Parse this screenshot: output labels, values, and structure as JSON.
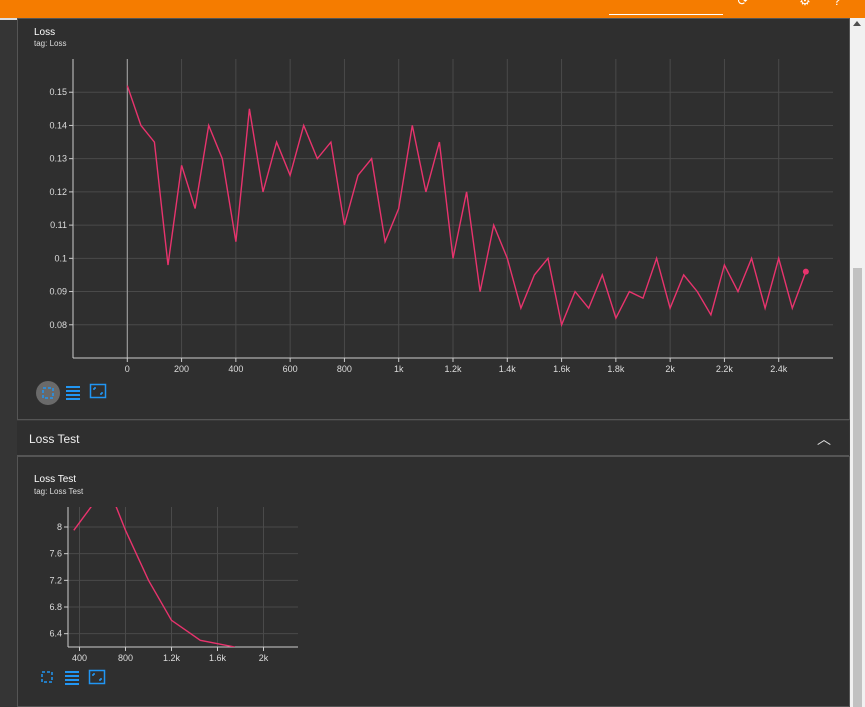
{
  "colors": {
    "accent": "#f57c00",
    "series": "#e8336d",
    "background": "#2f2f2f",
    "toolbar_icon": "#2196f3"
  },
  "loss_card": {
    "title": "Loss",
    "tag": "tag: Loss"
  },
  "loss_test_section": {
    "label": "Loss Test",
    "collapse_icon": "chevron-up-icon"
  },
  "loss_test_card": {
    "title": "Loss Test",
    "tag": "tag: Loss Test"
  },
  "chart_data": [
    {
      "type": "line",
      "title": "Loss",
      "xlim": [
        -200,
        2600
      ],
      "ylim": [
        0.07,
        0.16
      ],
      "x_ticks": [
        0,
        200,
        400,
        600,
        800,
        1000,
        1200,
        1400,
        1600,
        1800,
        2000,
        2200,
        2400
      ],
      "x_tick_labels": [
        "0",
        "200",
        "400",
        "600",
        "800",
        "1k",
        "1.2k",
        "1.4k",
        "1.6k",
        "1.8k",
        "2k",
        "2.2k",
        "2.4k"
      ],
      "y_ticks": [
        0.08,
        0.09,
        0.1,
        0.11,
        0.12,
        0.13,
        0.14,
        0.15
      ],
      "y_tick_labels": [
        "0.08",
        "0.09",
        "0.1",
        "0.11",
        "0.12",
        "0.13",
        "0.14",
        "0.15"
      ],
      "grid": true,
      "series": [
        {
          "color": "#e8336d",
          "x": [
            0,
            50,
            100,
            150,
            200,
            250,
            300,
            350,
            400,
            450,
            500,
            550,
            600,
            650,
            700,
            750,
            800,
            850,
            900,
            950,
            1000,
            1050,
            1100,
            1150,
            1200,
            1250,
            1300,
            1350,
            1400,
            1450,
            1500,
            1550,
            1600,
            1650,
            1700,
            1750,
            1800,
            1850,
            1900,
            1950,
            2000,
            2050,
            2100,
            2150,
            2200,
            2250,
            2300,
            2350,
            2400,
            2450,
            2500
          ],
          "y": [
            0.152,
            0.14,
            0.135,
            0.098,
            0.128,
            0.115,
            0.14,
            0.13,
            0.105,
            0.145,
            0.12,
            0.135,
            0.125,
            0.14,
            0.13,
            0.135,
            0.11,
            0.125,
            0.13,
            0.105,
            0.115,
            0.14,
            0.12,
            0.135,
            0.1,
            0.12,
            0.09,
            0.11,
            0.1,
            0.085,
            0.095,
            0.1,
            0.08,
            0.09,
            0.085,
            0.095,
            0.082,
            0.09,
            0.088,
            0.1,
            0.085,
            0.095,
            0.09,
            0.083,
            0.098,
            0.09,
            0.1,
            0.085,
            0.1,
            0.085,
            0.096
          ]
        }
      ]
    },
    {
      "type": "line",
      "title": "Loss Test",
      "xlim": [
        300,
        2300
      ],
      "ylim": [
        6.2,
        8.3
      ],
      "x_ticks": [
        400,
        800,
        1200,
        1600,
        2000
      ],
      "x_tick_labels": [
        "400",
        "800",
        "1.2k",
        "1.6k",
        "2k"
      ],
      "y_ticks": [
        6.4,
        6.8,
        7.2,
        7.6,
        8
      ],
      "y_tick_labels": [
        "6.4",
        "6.8",
        "7.2",
        "7.6",
        "8"
      ],
      "grid": true,
      "series": [
        {
          "color": "#e8336d",
          "x": [
            350,
            500,
            650,
            800,
            1000,
            1200,
            1450,
            1750
          ],
          "y": [
            7.95,
            8.3,
            8.6,
            7.95,
            7.2,
            6.6,
            6.3,
            6.2
          ]
        }
      ]
    }
  ]
}
